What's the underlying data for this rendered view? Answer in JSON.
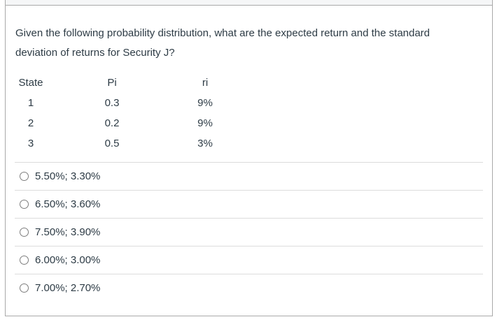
{
  "question": {
    "text": "Given the following probability distribution, what are the expected return and the standard deviation of returns for Security J?"
  },
  "distribution_table": {
    "headers": [
      "State",
      "Pi",
      "ri"
    ],
    "rows": [
      [
        "1",
        "0.3",
        "9%"
      ],
      [
        "2",
        "0.2",
        "9%"
      ],
      [
        "3",
        "0.5",
        "3%"
      ]
    ]
  },
  "options": [
    {
      "label": "5.50%; 3.30%",
      "selected": false
    },
    {
      "label": "6.50%; 3.60%",
      "selected": false
    },
    {
      "label": "7.50%; 3.90%",
      "selected": false
    },
    {
      "label": "6.00%; 3.00%",
      "selected": false
    },
    {
      "label": "7.00%; 2.70%",
      "selected": false
    }
  ],
  "colors": {
    "text": "#2d3b45",
    "box_border": "#a9a9a9",
    "divider": "#dcdcdc",
    "header_strip_bg": "#f5f6f7",
    "radio_border": "#7d7d7d"
  }
}
